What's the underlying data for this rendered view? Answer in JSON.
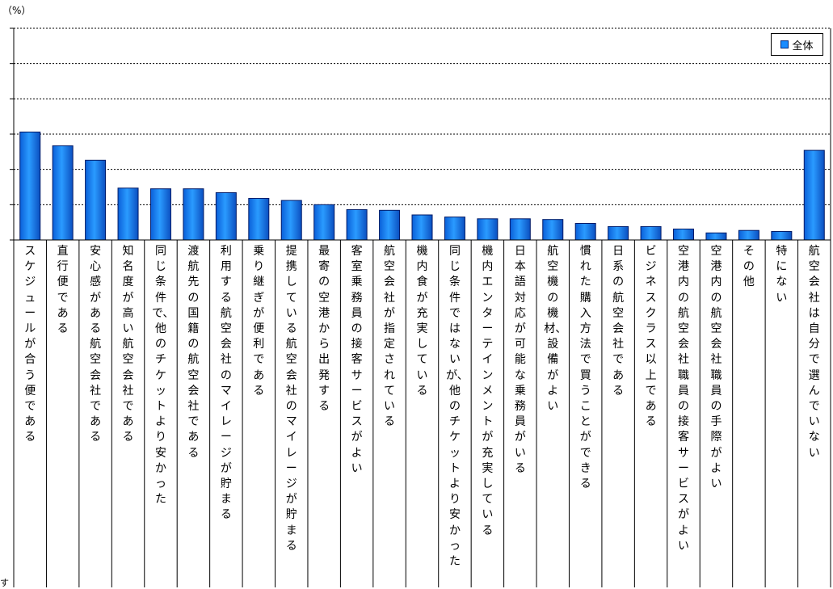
{
  "unit_label": "（%）",
  "legend": {
    "label": "全体",
    "color": "#1a8cff"
  },
  "bottom_partial_char": "す",
  "chart_data": {
    "type": "bar",
    "ylim": [
      0,
      60
    ],
    "grid": true,
    "legend_position": "top-right",
    "categories": [
      "スケジュールが合う便である",
      "直行便である",
      "安心感がある航空会社である",
      "知名度が高い航空会社である",
      "同じ条件で、他のチケットより安かった",
      "渡航先の国籍の航空会社である",
      "利用する航空会社のマイレージが貯まる",
      "乗り継ぎが便利である",
      "提携している航空会社のマイレージが貯まる",
      "最寄の空港から出発する",
      "客室乗務員の接客サービスがよい",
      "航空会社が指定されている",
      "機内食が充実している",
      "同じ条件ではないが、他のチケットより安かった",
      "機内エンターテインメントが充実している",
      "日本語対応が可能な乗務員がいる",
      "航空機の機材、設備がよい",
      "慣れた購入方法で買うことができる",
      "日系の航空会社である",
      "ビジネスクラス以上である",
      "空港内の航空会社職員の接客サービスがよい",
      "空港内の航空会社職員の手際がよい",
      "その他",
      "特にない",
      "航空会社は自分で選んでいない"
    ],
    "series": [
      {
        "name": "全体",
        "values": [
          30.6,
          26.7,
          22.6,
          14.7,
          14.5,
          14.5,
          13.4,
          11.8,
          11.2,
          10.0,
          8.6,
          8.4,
          7.1,
          6.5,
          6.0,
          6.0,
          5.8,
          4.7,
          3.8,
          3.8,
          3.1,
          2.0,
          2.7,
          2.4,
          25.4
        ]
      }
    ]
  }
}
